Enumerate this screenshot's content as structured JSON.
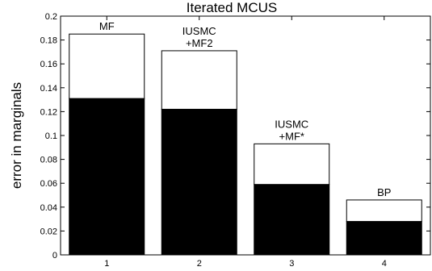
{
  "chart_data": {
    "type": "bar",
    "title": "Iterated MCUS",
    "xlabel": "",
    "ylabel": "error in marginals",
    "categories": [
      "1",
      "2",
      "3",
      "4"
    ],
    "ylim": [
      0,
      0.2
    ],
    "yticks": [
      0,
      0.02,
      0.04,
      0.06,
      0.08,
      0.1,
      0.12,
      0.14,
      0.16,
      0.18,
      0.2
    ],
    "ytick_labels": [
      "0",
      "0.02",
      "0.04",
      "0.06",
      "0.08",
      "0.1",
      "0.12",
      "0.14",
      "0.16",
      "0.18",
      "0.2"
    ],
    "grid": false,
    "stacked": true,
    "series": [
      {
        "values": [
          0.131,
          0.122,
          0.059,
          0.028
        ],
        "color": "#000000"
      },
      {
        "values": [
          0.054,
          0.049,
          0.034,
          0.018
        ],
        "color": "#ffffff"
      }
    ],
    "annotations": [
      {
        "category": "1",
        "lines": [
          "MF"
        ]
      },
      {
        "category": "2",
        "lines": [
          "IUSMC",
          "+MF2"
        ]
      },
      {
        "category": "3",
        "lines": [
          "IUSMC",
          "+MF*"
        ]
      },
      {
        "category": "4",
        "lines": [
          "BP"
        ]
      }
    ]
  }
}
